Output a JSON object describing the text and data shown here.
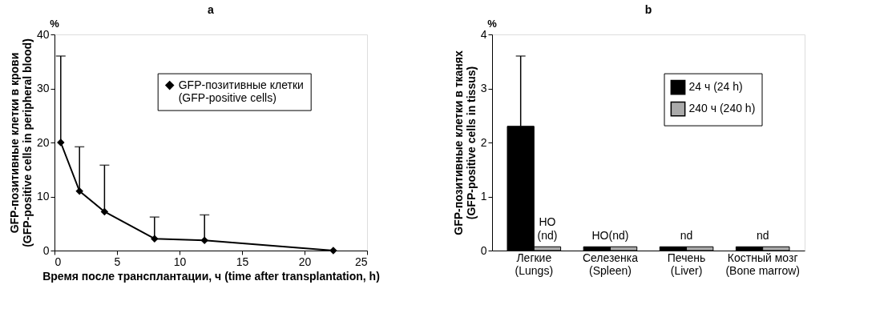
{
  "chart_data": [
    {
      "type": "line",
      "title": "a",
      "xlabel": "Время после трансплантации, ч (time after transplantation, h)",
      "ylabel": "GFP-позитивные клетки в крови (GFP-positive cells in peripheral blood)",
      "x": [
        0.5,
        2,
        4,
        8,
        12,
        22.3
      ],
      "series": [
        {
          "name": "GFP-позитивные клетки (GFP-positive cells)",
          "color": "#000000",
          "values": [
            20,
            11,
            7.2,
            2.2,
            1.9,
            0
          ],
          "errors": [
            [
              20,
              36
            ],
            [
              11,
              19.2
            ],
            [
              7.2,
              15.8
            ],
            [
              2.2,
              6.2
            ],
            [
              1.9,
              6.6
            ],
            null
          ]
        }
      ],
      "xlim": [
        0,
        25
      ],
      "xticks": [
        0,
        5,
        10,
        15,
        20,
        25
      ],
      "ylim": [
        0,
        40
      ],
      "yticks": [
        0,
        10,
        20,
        30,
        40
      ],
      "annotations": [
        "%"
      ],
      "marker": "diamond",
      "line_style": "solid",
      "grid": false,
      "legend": "top"
    },
    {
      "type": "bar",
      "title": "b",
      "ylabel": "GFP-позитивные клетки в тканях (GFP-positive cells in tissus)",
      "categories": [
        "Легкие (Lungs)",
        "Селезенка (Spleen)",
        "Печень (Liver)",
        "Костный мозг (Bone marrow)"
      ],
      "series": [
        {
          "name": "24 ч (24 h)",
          "color": "#000000",
          "values": [
            2.3,
            0.07,
            0.07,
            0.07
          ],
          "errors": [
            [
              2.3,
              3.6
            ],
            null,
            null,
            null
          ]
        },
        {
          "name": "240 ч (240 h)",
          "color": "#aaaaaa",
          "values": [
            0.07,
            0.07,
            0.07,
            0.07
          ]
        }
      ],
      "ylim": [
        0,
        4
      ],
      "yticks": [
        0,
        1,
        2,
        3,
        4
      ],
      "annotations": [
        "%",
        {
          "text": "НО (nd)",
          "x": "Легкие (Lungs)",
          "y": 0.07
        },
        {
          "text": "НО(nd)",
          "x": "Селезенка (Spleen)",
          "y": 0.07
        },
        {
          "text": "nd",
          "x": "Печень (Liver)",
          "y": 0.07
        },
        {
          "text": "nd",
          "x": "Костный мозг (Bone marrow)",
          "y": 0.07
        }
      ],
      "grid": false,
      "legend": "top right"
    }
  ]
}
